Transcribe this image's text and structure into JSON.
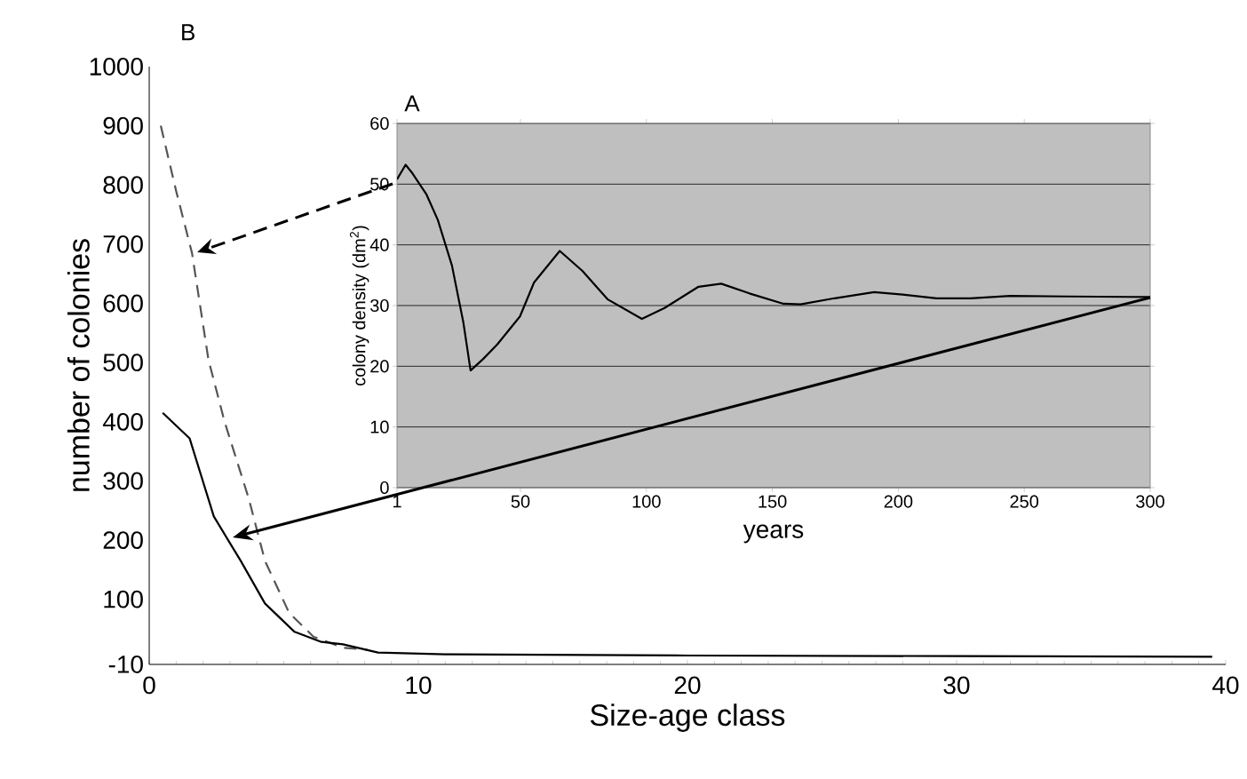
{
  "chart_data": [
    {
      "type": "line",
      "title": "B",
      "xlabel": "Size-age class",
      "ylabel": "number of colonies",
      "xlim": [
        0,
        40
      ],
      "xticks": [
        0,
        10,
        20,
        30,
        40
      ],
      "ylim": [
        -10,
        1000
      ],
      "yticks": [
        -10,
        100,
        200,
        300,
        400,
        500,
        600,
        700,
        800,
        900,
        1000
      ],
      "grid": false,
      "marker": "none",
      "series": [
        {
          "color": "#555555",
          "line_style": "dashed",
          "x": [
            0.43,
            1.0,
            1.59,
            2.2,
            2.8,
            3.7,
            4.3,
            5.2,
            6.1,
            7.2,
            8.1
          ],
          "values": [
            900,
            790,
            685,
            505,
            400,
            270,
            165,
            77,
            37,
            18,
            15
          ]
        },
        {
          "color": "#000000",
          "line_style": "solid",
          "x": [
            0.5,
            1.5,
            2.4,
            3.4,
            4.3,
            5.4,
            6.4,
            7.2,
            8.5,
            11,
            20,
            30,
            39.5
          ],
          "values": [
            415,
            372,
            240,
            165,
            93,
            45,
            28,
            24,
            10,
            7,
            5,
            4,
            3
          ]
        }
      ]
    },
    {
      "type": "line",
      "title": "A",
      "xlabel": "years",
      "ylabel": "colony density (dm$^{2}$)",
      "xlim": [
        1,
        300
      ],
      "xticks": [
        1,
        50,
        100,
        150,
        200,
        250,
        300
      ],
      "ylim": [
        0,
        60
      ],
      "yticks": [
        0,
        10,
        20,
        30,
        40,
        50,
        60
      ],
      "grid": "y",
      "marker": "none",
      "series": [
        {
          "color": "#000000",
          "line_style": "solid",
          "x": [
            1,
            4.4,
            7.1,
            12.7,
            17.2,
            22.8,
            27.3,
            30.2,
            35.2,
            40.8,
            49.8,
            55.4,
            65.6,
            74.6,
            84.7,
            98.2,
            107.2,
            120.7,
            129.7,
            140.9,
            154.4,
            161.2,
            174.7,
            190.4,
            201.7,
            215.2,
            228.7,
            244.4,
            266.9,
            300
          ],
          "values": [
            50.8,
            53.2,
            51.8,
            48.3,
            44.1,
            36.6,
            27.3,
            19.3,
            21.2,
            23.6,
            28.2,
            33.8,
            39.0,
            35.7,
            31.0,
            27.8,
            29.6,
            33.1,
            33.6,
            32.0,
            30.3,
            30.2,
            31.2,
            32.2,
            31.8,
            31.2,
            31.2,
            31.6,
            31.5,
            31.4
          ]
        }
      ]
    }
  ]
}
